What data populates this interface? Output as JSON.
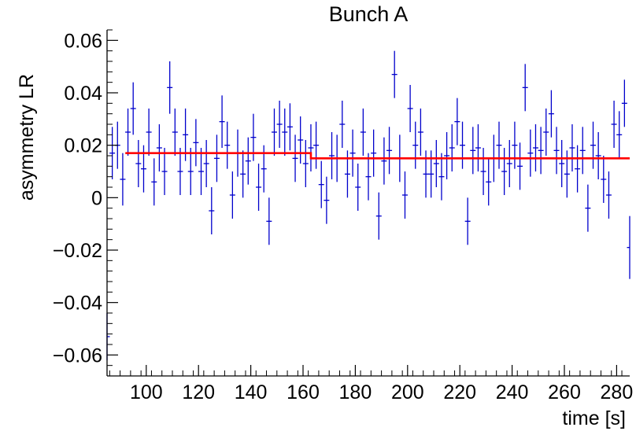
{
  "chart_data": {
    "type": "scatter",
    "title": "Bunch A",
    "xlabel": "time [s]",
    "ylabel": "asymmetry LR",
    "xlim": [
      85,
      285
    ],
    "ylim": [
      -0.068,
      0.064
    ],
    "x_ticks": [
      100,
      120,
      140,
      160,
      180,
      200,
      220,
      240,
      260,
      280
    ],
    "y_ticks": [
      {
        "v": 0.06,
        "label": "0.06"
      },
      {
        "v": 0.04,
        "label": "0.04"
      },
      {
        "v": 0.02,
        "label": "0.02"
      },
      {
        "v": 0,
        "label": "0"
      },
      {
        "v": -0.02,
        "label": "−0.02"
      },
      {
        "v": -0.04,
        "label": "−0.04"
      },
      {
        "v": -0.06,
        "label": "−0.06"
      }
    ],
    "grid": false,
    "series": [
      {
        "style": "errorbars",
        "color": "#0000cc",
        "points": [
          {
            "x": 85,
            "y": -0.053,
            "e": 0.009
          },
          {
            "x": 87,
            "y": 0.017,
            "e": 0.01
          },
          {
            "x": 89,
            "y": 0.02,
            "e": 0.009
          },
          {
            "x": 91,
            "y": 0.007,
            "e": 0.01
          },
          {
            "x": 93,
            "y": 0.025,
            "e": 0.009
          },
          {
            "x": 95,
            "y": 0.034,
            "e": 0.01
          },
          {
            "x": 97,
            "y": 0.013,
            "e": 0.009
          },
          {
            "x": 99,
            "y": 0.011,
            "e": 0.009
          },
          {
            "x": 101,
            "y": 0.025,
            "e": 0.009
          },
          {
            "x": 103,
            "y": 0.006,
            "e": 0.009
          },
          {
            "x": 105,
            "y": 0.019,
            "e": 0.009
          },
          {
            "x": 107,
            "y": 0.01,
            "e": 0.009
          },
          {
            "x": 109,
            "y": 0.042,
            "e": 0.01
          },
          {
            "x": 111,
            "y": 0.025,
            "e": 0.009
          },
          {
            "x": 113,
            "y": 0.01,
            "e": 0.009
          },
          {
            "x": 115,
            "y": 0.024,
            "e": 0.01
          },
          {
            "x": 117,
            "y": 0.01,
            "e": 0.009
          },
          {
            "x": 119,
            "y": 0.021,
            "e": 0.009
          },
          {
            "x": 121,
            "y": 0.01,
            "e": 0.009
          },
          {
            "x": 123,
            "y": 0.013,
            "e": 0.009
          },
          {
            "x": 125,
            "y": -0.005,
            "e": 0.009
          },
          {
            "x": 127,
            "y": 0.015,
            "e": 0.009
          },
          {
            "x": 129,
            "y": 0.029,
            "e": 0.01
          },
          {
            "x": 131,
            "y": 0.02,
            "e": 0.009
          },
          {
            "x": 133,
            "y": 0.001,
            "e": 0.009
          },
          {
            "x": 135,
            "y": 0.017,
            "e": 0.009
          },
          {
            "x": 137,
            "y": 0.009,
            "e": 0.009
          },
          {
            "x": 139,
            "y": 0.014,
            "e": 0.009
          },
          {
            "x": 141,
            "y": 0.023,
            "e": 0.009
          },
          {
            "x": 143,
            "y": 0.004,
            "e": 0.009
          },
          {
            "x": 145,
            "y": 0.011,
            "e": 0.009
          },
          {
            "x": 147,
            "y": -0.009,
            "e": 0.009
          },
          {
            "x": 149,
            "y": 0.025,
            "e": 0.009
          },
          {
            "x": 151,
            "y": 0.028,
            "e": 0.009
          },
          {
            "x": 153,
            "y": 0.025,
            "e": 0.009
          },
          {
            "x": 155,
            "y": 0.027,
            "e": 0.009
          },
          {
            "x": 157,
            "y": 0.015,
            "e": 0.009
          },
          {
            "x": 159,
            "y": 0.022,
            "e": 0.009
          },
          {
            "x": 161,
            "y": 0.013,
            "e": 0.009
          },
          {
            "x": 163,
            "y": 0.019,
            "e": 0.009
          },
          {
            "x": 165,
            "y": 0.02,
            "e": 0.009
          },
          {
            "x": 167,
            "y": 0.005,
            "e": 0.009
          },
          {
            "x": 169,
            "y": -0.001,
            "e": 0.009
          },
          {
            "x": 171,
            "y": 0.016,
            "e": 0.009
          },
          {
            "x": 173,
            "y": 0.015,
            "e": 0.009
          },
          {
            "x": 175,
            "y": 0.028,
            "e": 0.009
          },
          {
            "x": 177,
            "y": 0.009,
            "e": 0.009
          },
          {
            "x": 179,
            "y": 0.017,
            "e": 0.009
          },
          {
            "x": 181,
            "y": 0.004,
            "e": 0.009
          },
          {
            "x": 183,
            "y": 0.025,
            "e": 0.009
          },
          {
            "x": 185,
            "y": 0.008,
            "e": 0.009
          },
          {
            "x": 187,
            "y": 0.017,
            "e": 0.009
          },
          {
            "x": 189,
            "y": -0.007,
            "e": 0.009
          },
          {
            "x": 191,
            "y": 0.014,
            "e": 0.009
          },
          {
            "x": 193,
            "y": 0.018,
            "e": 0.009
          },
          {
            "x": 195,
            "y": 0.047,
            "e": 0.009
          },
          {
            "x": 197,
            "y": 0.015,
            "e": 0.009
          },
          {
            "x": 199,
            "y": 0.001,
            "e": 0.009
          },
          {
            "x": 201,
            "y": 0.034,
            "e": 0.009
          },
          {
            "x": 203,
            "y": 0.02,
            "e": 0.009
          },
          {
            "x": 205,
            "y": 0.025,
            "e": 0.009
          },
          {
            "x": 207,
            "y": 0.009,
            "e": 0.009
          },
          {
            "x": 209,
            "y": 0.009,
            "e": 0.009
          },
          {
            "x": 211,
            "y": 0.013,
            "e": 0.009
          },
          {
            "x": 213,
            "y": 0.008,
            "e": 0.009
          },
          {
            "x": 215,
            "y": 0.016,
            "e": 0.009
          },
          {
            "x": 217,
            "y": 0.019,
            "e": 0.009
          },
          {
            "x": 219,
            "y": 0.029,
            "e": 0.009
          },
          {
            "x": 221,
            "y": 0.02,
            "e": 0.009
          },
          {
            "x": 223,
            "y": -0.009,
            "e": 0.009
          },
          {
            "x": 225,
            "y": 0.018,
            "e": 0.009
          },
          {
            "x": 227,
            "y": 0.019,
            "e": 0.009
          },
          {
            "x": 229,
            "y": 0.01,
            "e": 0.009
          },
          {
            "x": 231,
            "y": 0.006,
            "e": 0.009
          },
          {
            "x": 233,
            "y": 0.015,
            "e": 0.009
          },
          {
            "x": 235,
            "y": 0.02,
            "e": 0.009
          },
          {
            "x": 237,
            "y": 0.01,
            "e": 0.009
          },
          {
            "x": 239,
            "y": 0.013,
            "e": 0.009
          },
          {
            "x": 241,
            "y": 0.02,
            "e": 0.009
          },
          {
            "x": 243,
            "y": 0.012,
            "e": 0.009
          },
          {
            "x": 245,
            "y": 0.042,
            "e": 0.009
          },
          {
            "x": 247,
            "y": 0.017,
            "e": 0.009
          },
          {
            "x": 249,
            "y": 0.019,
            "e": 0.009
          },
          {
            "x": 251,
            "y": 0.018,
            "e": 0.009
          },
          {
            "x": 253,
            "y": 0.025,
            "e": 0.009
          },
          {
            "x": 255,
            "y": 0.032,
            "e": 0.009
          },
          {
            "x": 257,
            "y": 0.018,
            "e": 0.009
          },
          {
            "x": 259,
            "y": 0.013,
            "e": 0.009
          },
          {
            "x": 261,
            "y": 0.009,
            "e": 0.009
          },
          {
            "x": 263,
            "y": 0.019,
            "e": 0.009
          },
          {
            "x": 265,
            "y": 0.011,
            "e": 0.009
          },
          {
            "x": 267,
            "y": 0.018,
            "e": 0.009
          },
          {
            "x": 269,
            "y": -0.004,
            "e": 0.009
          },
          {
            "x": 271,
            "y": 0.02,
            "e": 0.009
          },
          {
            "x": 273,
            "y": 0.016,
            "e": 0.009
          },
          {
            "x": 275,
            "y": 0.007,
            "e": 0.009
          },
          {
            "x": 277,
            "y": 0.001,
            "e": 0.009
          },
          {
            "x": 279,
            "y": 0.028,
            "e": 0.009
          },
          {
            "x": 281,
            "y": 0.024,
            "e": 0.009
          },
          {
            "x": 283,
            "y": 0.036,
            "e": 0.009
          },
          {
            "x": 285,
            "y": -0.019,
            "e": 0.012
          }
        ]
      },
      {
        "style": "fit-line",
        "color": "#ff0000",
        "segments": [
          {
            "x0": 92,
            "x1": 163,
            "y": 0.017
          },
          {
            "x0": 163,
            "x1": 285,
            "y": 0.015
          }
        ]
      }
    ]
  }
}
